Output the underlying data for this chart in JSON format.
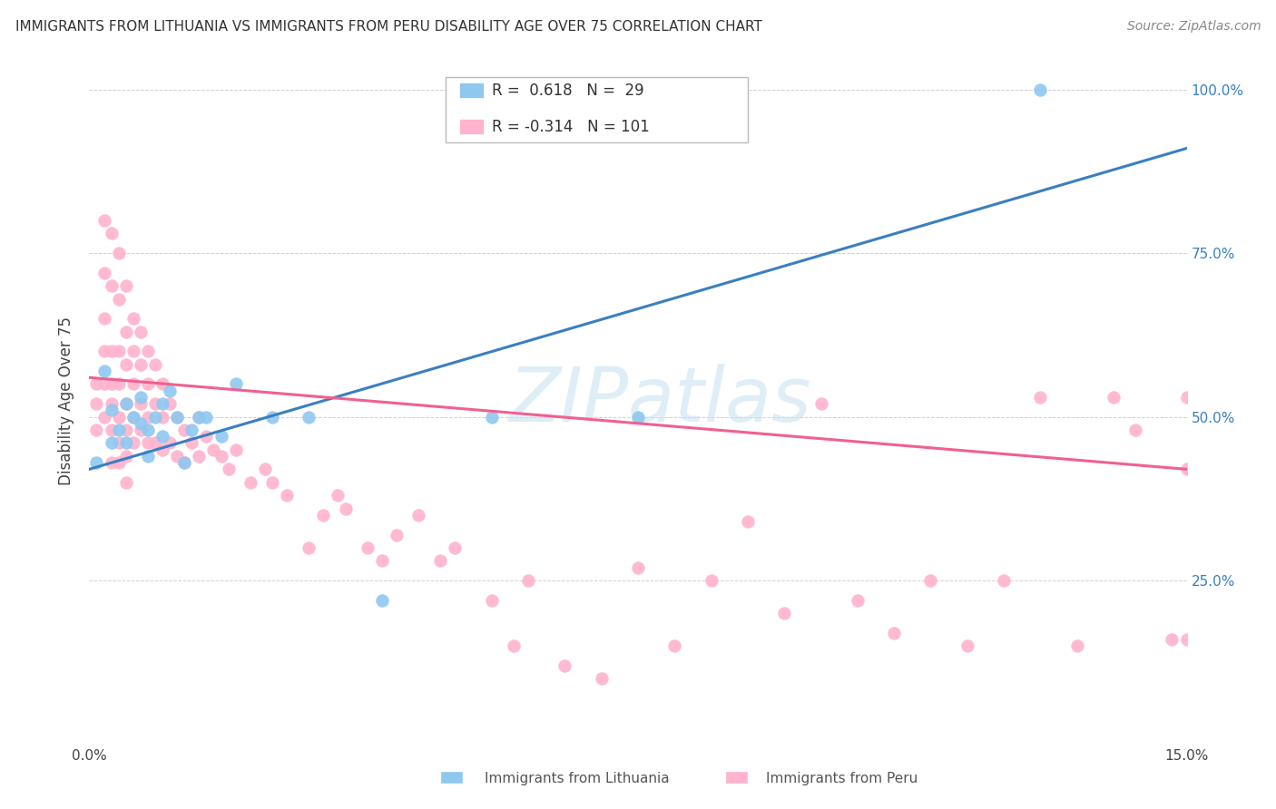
{
  "title": "IMMIGRANTS FROM LITHUANIA VS IMMIGRANTS FROM PERU DISABILITY AGE OVER 75 CORRELATION CHART",
  "source": "Source: ZipAtlas.com",
  "ylabel": "Disability Age Over 75",
  "x_min": 0.0,
  "x_max": 0.15,
  "y_min": 0.0,
  "y_max": 1.05,
  "blue_color": "#8ec8f0",
  "pink_color": "#ffb3cc",
  "blue_line_color": "#3a7fc1",
  "pink_line_color": "#f06090",
  "watermark_text": "ZIPatlas",
  "watermark_color": "#c5dff0",
  "legend_blue_r": "R =  0.618",
  "legend_blue_n": "N =  29",
  "legend_pink_r": "R = -0.314",
  "legend_pink_n": "N = 101",
  "lith_x": [
    0.001,
    0.002,
    0.003,
    0.003,
    0.004,
    0.005,
    0.005,
    0.006,
    0.007,
    0.007,
    0.008,
    0.008,
    0.009,
    0.01,
    0.01,
    0.011,
    0.012,
    0.013,
    0.014,
    0.015,
    0.016,
    0.018,
    0.02,
    0.025,
    0.03,
    0.04,
    0.055,
    0.075,
    0.13
  ],
  "lith_y": [
    0.43,
    0.57,
    0.46,
    0.51,
    0.48,
    0.52,
    0.46,
    0.5,
    0.49,
    0.53,
    0.48,
    0.44,
    0.5,
    0.47,
    0.52,
    0.54,
    0.5,
    0.43,
    0.48,
    0.5,
    0.5,
    0.47,
    0.55,
    0.5,
    0.5,
    0.22,
    0.5,
    0.5,
    1.0
  ],
  "peru_x": [
    0.001,
    0.001,
    0.001,
    0.002,
    0.002,
    0.002,
    0.002,
    0.002,
    0.002,
    0.003,
    0.003,
    0.003,
    0.003,
    0.003,
    0.003,
    0.003,
    0.004,
    0.004,
    0.004,
    0.004,
    0.004,
    0.004,
    0.004,
    0.005,
    0.005,
    0.005,
    0.005,
    0.005,
    0.005,
    0.005,
    0.006,
    0.006,
    0.006,
    0.006,
    0.006,
    0.007,
    0.007,
    0.007,
    0.007,
    0.008,
    0.008,
    0.008,
    0.008,
    0.009,
    0.009,
    0.009,
    0.01,
    0.01,
    0.01,
    0.011,
    0.011,
    0.012,
    0.012,
    0.013,
    0.013,
    0.014,
    0.015,
    0.015,
    0.016,
    0.017,
    0.018,
    0.019,
    0.02,
    0.022,
    0.024,
    0.025,
    0.027,
    0.03,
    0.032,
    0.034,
    0.035,
    0.038,
    0.04,
    0.042,
    0.045,
    0.048,
    0.05,
    0.055,
    0.058,
    0.06,
    0.065,
    0.07,
    0.075,
    0.08,
    0.085,
    0.09,
    0.095,
    0.1,
    0.105,
    0.11,
    0.115,
    0.12,
    0.125,
    0.13,
    0.135,
    0.14,
    0.143,
    0.148,
    0.15,
    0.15,
    0.15
  ],
  "peru_y": [
    0.52,
    0.55,
    0.48,
    0.8,
    0.72,
    0.65,
    0.6,
    0.55,
    0.5,
    0.78,
    0.7,
    0.6,
    0.55,
    0.52,
    0.48,
    0.43,
    0.75,
    0.68,
    0.6,
    0.55,
    0.5,
    0.46,
    0.43,
    0.7,
    0.63,
    0.58,
    0.52,
    0.48,
    0.44,
    0.4,
    0.65,
    0.6,
    0.55,
    0.5,
    0.46,
    0.63,
    0.58,
    0.52,
    0.48,
    0.6,
    0.55,
    0.5,
    0.46,
    0.58,
    0.52,
    0.46,
    0.55,
    0.5,
    0.45,
    0.52,
    0.46,
    0.5,
    0.44,
    0.48,
    0.43,
    0.46,
    0.5,
    0.44,
    0.47,
    0.45,
    0.44,
    0.42,
    0.45,
    0.4,
    0.42,
    0.4,
    0.38,
    0.3,
    0.35,
    0.38,
    0.36,
    0.3,
    0.28,
    0.32,
    0.35,
    0.28,
    0.3,
    0.22,
    0.15,
    0.25,
    0.12,
    0.1,
    0.27,
    0.15,
    0.25,
    0.34,
    0.2,
    0.52,
    0.22,
    0.17,
    0.25,
    0.15,
    0.25,
    0.53,
    0.15,
    0.53,
    0.48,
    0.16,
    0.53,
    0.16,
    0.42
  ]
}
